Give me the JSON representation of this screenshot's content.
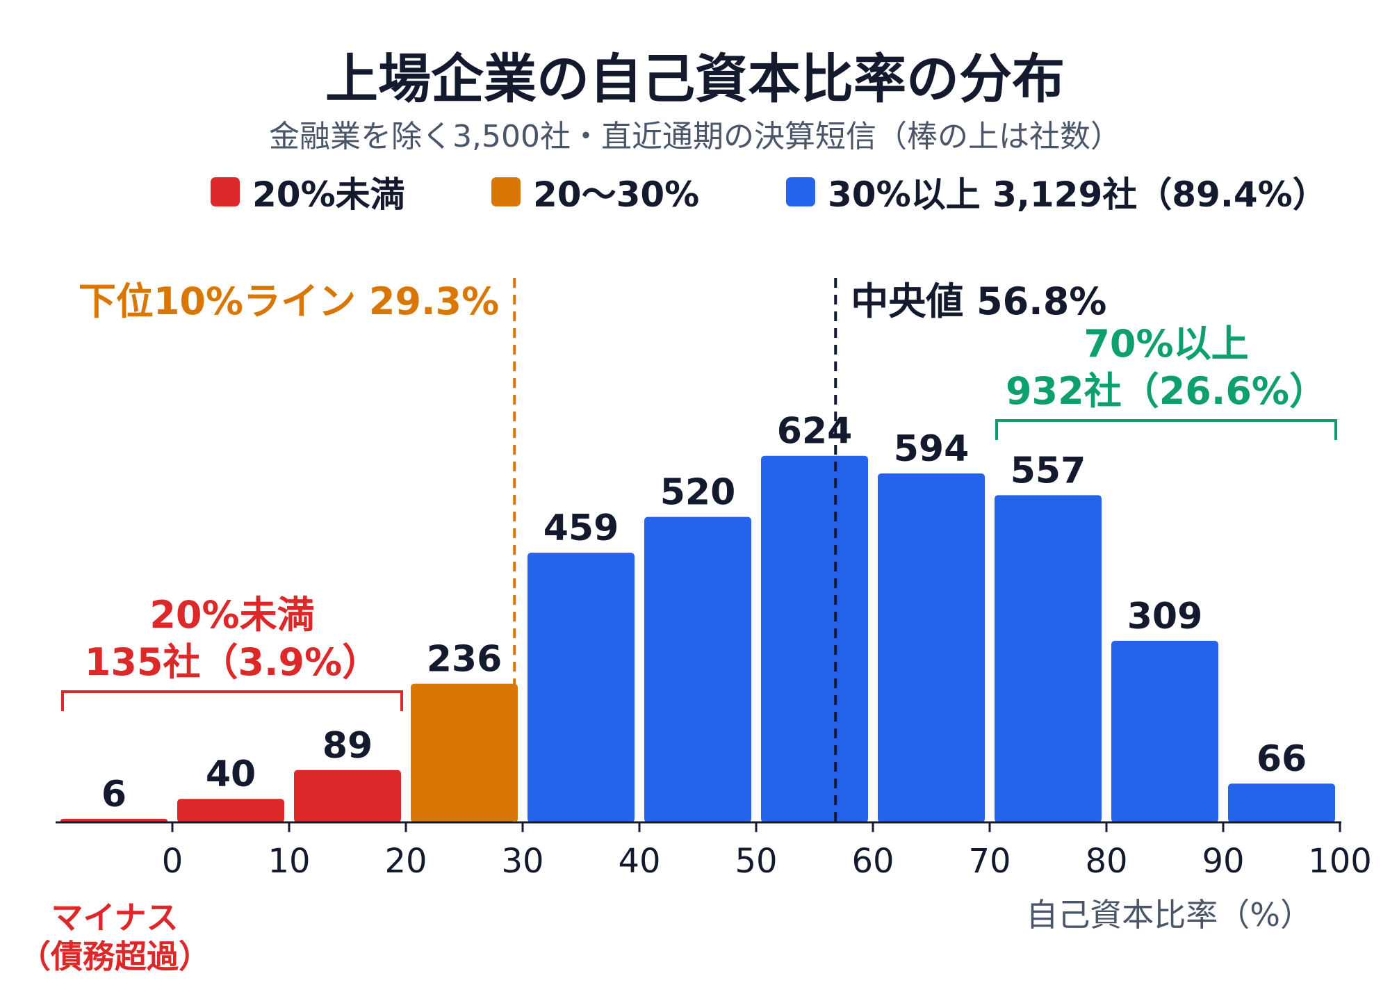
{
  "chart_data": {
    "type": "bar",
    "title": "上場企業の自己資本比率の分布",
    "subtitle": "金融業を除く3,500社・直近通期の決算短信（棒の上は社数）",
    "xlabel": "自己資本比率（%）",
    "x_ticks": [
      "0",
      "10",
      "20",
      "30",
      "40",
      "50",
      "60",
      "70",
      "80",
      "90",
      "100"
    ],
    "xlim": [
      -10,
      100
    ],
    "ylim": [
      0,
      660
    ],
    "bins": [
      {
        "from": -10,
        "to": 0,
        "value": 6,
        "group": "under20"
      },
      {
        "from": 0,
        "to": 10,
        "value": 40,
        "group": "under20"
      },
      {
        "from": 10,
        "to": 20,
        "value": 89,
        "group": "under20"
      },
      {
        "from": 20,
        "to": 30,
        "value": 236,
        "group": "mid"
      },
      {
        "from": 30,
        "to": 40,
        "value": 459,
        "group": "over30"
      },
      {
        "from": 40,
        "to": 50,
        "value": 520,
        "group": "over30"
      },
      {
        "from": 50,
        "to": 60,
        "value": 624,
        "group": "over30"
      },
      {
        "from": 60,
        "to": 70,
        "value": 594,
        "group": "over30"
      },
      {
        "from": 70,
        "to": 80,
        "value": 557,
        "group": "over30"
      },
      {
        "from": 80,
        "to": 90,
        "value": 309,
        "group": "over30"
      },
      {
        "from": 90,
        "to": 100,
        "value": 66,
        "group": "over30"
      }
    ],
    "legend": [
      {
        "key": "under20",
        "label": "20%未満",
        "color": "#dc2828"
      },
      {
        "key": "mid",
        "label": "20〜30%",
        "color": "#d97706"
      },
      {
        "key": "over30",
        "label": "30%以上 3,129社（89.4%）",
        "color": "#2563eb"
      }
    ],
    "reference_lines": [
      {
        "x": 29.3,
        "label": "下位10%ライン 29.3%",
        "color": "#d97706"
      },
      {
        "x": 56.8,
        "label": "中央値 56.8%",
        "color": "#141a2e"
      }
    ],
    "brackets": [
      {
        "from": -10,
        "to": 20,
        "line1": "20%未満",
        "line2": "135社（3.9%）",
        "color": "#dc2828"
      },
      {
        "from": 70,
        "to": 100,
        "line1": "70%以上",
        "line2": "932社（26.6%）",
        "color": "#0e9f6e"
      }
    ],
    "negative_label": {
      "line1": "マイナス",
      "line2": "（債務超過）",
      "color": "#dc2828"
    }
  }
}
